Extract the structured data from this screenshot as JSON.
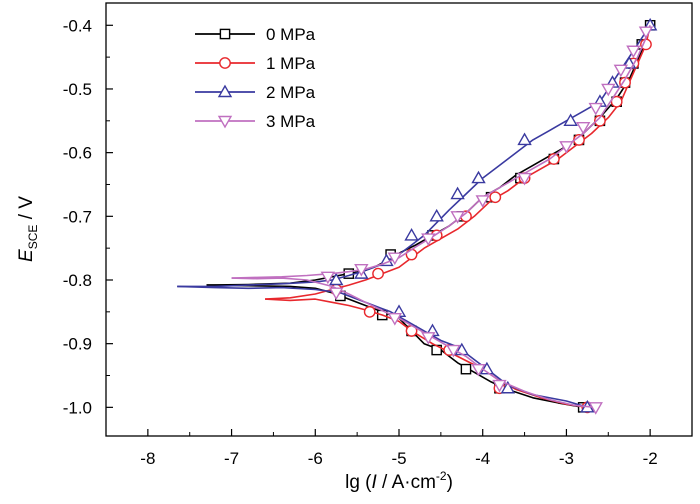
{
  "chart_data": {
    "type": "line",
    "title": "",
    "xlabel": "lg (I / A·cm⁻²)",
    "xlabel_parts": {
      "pre": "lg (",
      "var": "I",
      "mid": " / A·cm",
      "sup": "-2",
      "post": ")"
    },
    "ylabel": "E_SCE / V",
    "ylabel_parts": {
      "var": "E",
      "sub": "SCE",
      "post": " / V"
    },
    "xlim": [
      -8.5,
      -1.5
    ],
    "ylim": [
      -1.045,
      -0.365
    ],
    "x_ticks": [
      -8,
      -7,
      -6,
      -5,
      -4,
      -3,
      -2
    ],
    "x_tick_labels": [
      "-8",
      "-7",
      "-6",
      "-5",
      "-4",
      "-3",
      "-2"
    ],
    "y_ticks": [
      -0.4,
      -0.5,
      -0.6,
      -0.7,
      -0.8,
      -0.9,
      -1.0
    ],
    "y_tick_labels": [
      "-0.4",
      "-0.5",
      "-0.6",
      "-0.7",
      "-0.8",
      "-0.9",
      "-1.0"
    ],
    "grid": false,
    "legend_position": "top-left",
    "series": [
      {
        "name": "0 MPa",
        "color": "#000000",
        "marker": "square",
        "cathodic": [
          [
            -7.3,
            -0.808
          ],
          [
            -6.8,
            -0.809
          ],
          [
            -6.3,
            -0.81
          ],
          [
            -6.0,
            -0.813
          ],
          [
            -5.8,
            -0.82
          ],
          [
            -5.6,
            -0.83
          ],
          [
            -5.4,
            -0.84
          ],
          [
            -5.2,
            -0.85
          ],
          [
            -5.0,
            -0.86
          ],
          [
            -4.85,
            -0.88
          ],
          [
            -4.7,
            -0.9
          ],
          [
            -4.5,
            -0.91
          ],
          [
            -4.3,
            -0.93
          ],
          [
            -4.1,
            -0.945
          ],
          [
            -3.9,
            -0.96
          ],
          [
            -3.7,
            -0.972
          ],
          [
            -3.4,
            -0.985
          ],
          [
            -3.1,
            -0.993
          ],
          [
            -2.8,
            -1.0
          ]
        ],
        "anodic": [
          [
            -7.3,
            -0.808
          ],
          [
            -6.8,
            -0.807
          ],
          [
            -6.3,
            -0.805
          ],
          [
            -6.0,
            -0.8
          ],
          [
            -5.8,
            -0.795
          ],
          [
            -5.6,
            -0.79
          ],
          [
            -5.4,
            -0.785
          ],
          [
            -5.3,
            -0.78
          ],
          [
            -5.15,
            -0.77
          ],
          [
            -5.0,
            -0.758
          ],
          [
            -4.8,
            -0.745
          ],
          [
            -4.6,
            -0.73
          ],
          [
            -4.4,
            -0.715
          ],
          [
            -4.2,
            -0.695
          ],
          [
            -4.0,
            -0.67
          ],
          [
            -3.8,
            -0.655
          ],
          [
            -3.6,
            -0.635
          ],
          [
            -3.4,
            -0.62
          ],
          [
            -3.2,
            -0.605
          ],
          [
            -3.0,
            -0.59
          ],
          [
            -2.8,
            -0.57
          ],
          [
            -2.6,
            -0.545
          ],
          [
            -2.4,
            -0.515
          ],
          [
            -2.25,
            -0.485
          ],
          [
            -2.1,
            -0.44
          ],
          [
            -2.0,
            -0.4
          ]
        ],
        "markers": [
          [
            -5.6,
            -0.79
          ],
          [
            -5.1,
            -0.76
          ],
          [
            -4.6,
            -0.73
          ],
          [
            -4.25,
            -0.7
          ],
          [
            -3.9,
            -0.67
          ],
          [
            -3.55,
            -0.64
          ],
          [
            -3.15,
            -0.61
          ],
          [
            -2.85,
            -0.58
          ],
          [
            -2.6,
            -0.55
          ],
          [
            -2.4,
            -0.52
          ],
          [
            -2.3,
            -0.49
          ],
          [
            -2.2,
            -0.46
          ],
          [
            -2.1,
            -0.43
          ],
          [
            -2.0,
            -0.4
          ],
          [
            -5.7,
            -0.825
          ],
          [
            -5.2,
            -0.855
          ],
          [
            -4.85,
            -0.88
          ],
          [
            -4.55,
            -0.91
          ],
          [
            -4.2,
            -0.94
          ],
          [
            -3.8,
            -0.97
          ],
          [
            -2.8,
            -1.0
          ]
        ]
      },
      {
        "name": "1 MPa",
        "color": "#e8282d",
        "marker": "circle",
        "cathodic": [
          [
            -6.6,
            -0.83
          ],
          [
            -6.3,
            -0.832
          ],
          [
            -6.0,
            -0.83
          ],
          [
            -5.8,
            -0.835
          ],
          [
            -5.6,
            -0.84
          ],
          [
            -5.4,
            -0.847
          ],
          [
            -5.2,
            -0.855
          ],
          [
            -5.0,
            -0.865
          ],
          [
            -4.85,
            -0.88
          ],
          [
            -4.6,
            -0.9
          ],
          [
            -4.3,
            -0.92
          ],
          [
            -4.0,
            -0.94
          ],
          [
            -3.8,
            -0.958
          ],
          [
            -3.6,
            -0.972
          ],
          [
            -3.3,
            -0.985
          ],
          [
            -3.0,
            -0.995
          ],
          [
            -2.75,
            -1.0
          ]
        ],
        "anodic": [
          [
            -6.6,
            -0.83
          ],
          [
            -6.3,
            -0.828
          ],
          [
            -6.0,
            -0.822
          ],
          [
            -5.8,
            -0.815
          ],
          [
            -5.6,
            -0.808
          ],
          [
            -5.4,
            -0.8
          ],
          [
            -5.2,
            -0.79
          ],
          [
            -5.0,
            -0.78
          ],
          [
            -4.85,
            -0.765
          ],
          [
            -4.7,
            -0.75
          ],
          [
            -4.5,
            -0.735
          ],
          [
            -4.3,
            -0.72
          ],
          [
            -4.1,
            -0.7
          ],
          [
            -3.9,
            -0.675
          ],
          [
            -3.7,
            -0.66
          ],
          [
            -3.5,
            -0.64
          ],
          [
            -3.3,
            -0.625
          ],
          [
            -3.1,
            -0.61
          ],
          [
            -2.9,
            -0.59
          ],
          [
            -2.7,
            -0.57
          ],
          [
            -2.5,
            -0.545
          ],
          [
            -2.35,
            -0.52
          ],
          [
            -2.25,
            -0.49
          ],
          [
            -2.15,
            -0.46
          ],
          [
            -2.05,
            -0.43
          ],
          [
            -2.0,
            -0.4
          ]
        ],
        "markers": [
          [
            -5.75,
            -0.815
          ],
          [
            -5.25,
            -0.79
          ],
          [
            -4.85,
            -0.76
          ],
          [
            -4.55,
            -0.73
          ],
          [
            -4.2,
            -0.7
          ],
          [
            -3.85,
            -0.67
          ],
          [
            -3.5,
            -0.64
          ],
          [
            -3.15,
            -0.61
          ],
          [
            -2.85,
            -0.58
          ],
          [
            -2.6,
            -0.55
          ],
          [
            -2.4,
            -0.52
          ],
          [
            -2.3,
            -0.49
          ],
          [
            -2.2,
            -0.46
          ],
          [
            -2.05,
            -0.43
          ],
          [
            -5.35,
            -0.85
          ],
          [
            -4.85,
            -0.88
          ],
          [
            -4.4,
            -0.91
          ],
          [
            -3.8,
            -0.97
          ],
          [
            -2.75,
            -1.0
          ]
        ]
      },
      {
        "name": "2 MPa",
        "color": "#3a3aa0",
        "marker": "triangle-up",
        "cathodic": [
          [
            -7.65,
            -0.81
          ],
          [
            -7.2,
            -0.812
          ],
          [
            -6.8,
            -0.813
          ],
          [
            -6.4,
            -0.812
          ],
          [
            -6.0,
            -0.815
          ],
          [
            -5.7,
            -0.82
          ],
          [
            -5.5,
            -0.83
          ],
          [
            -5.3,
            -0.84
          ],
          [
            -5.1,
            -0.85
          ],
          [
            -4.9,
            -0.865
          ],
          [
            -4.7,
            -0.88
          ],
          [
            -4.5,
            -0.895
          ],
          [
            -4.3,
            -0.905
          ],
          [
            -4.1,
            -0.925
          ],
          [
            -3.9,
            -0.945
          ],
          [
            -3.7,
            -0.965
          ],
          [
            -3.4,
            -0.98
          ],
          [
            -3.0,
            -0.99
          ],
          [
            -2.75,
            -1.0
          ]
        ],
        "anodic": [
          [
            -7.65,
            -0.81
          ],
          [
            -7.2,
            -0.81
          ],
          [
            -6.8,
            -0.808
          ],
          [
            -6.4,
            -0.806
          ],
          [
            -6.0,
            -0.803
          ],
          [
            -5.8,
            -0.8
          ],
          [
            -5.6,
            -0.793
          ],
          [
            -5.4,
            -0.785
          ],
          [
            -5.2,
            -0.775
          ],
          [
            -5.0,
            -0.76
          ],
          [
            -4.85,
            -0.745
          ],
          [
            -4.7,
            -0.73
          ],
          [
            -4.55,
            -0.71
          ],
          [
            -4.4,
            -0.69
          ],
          [
            -4.2,
            -0.665
          ],
          [
            -4.0,
            -0.64
          ],
          [
            -3.8,
            -0.62
          ],
          [
            -3.6,
            -0.6
          ],
          [
            -3.4,
            -0.58
          ],
          [
            -3.2,
            -0.565
          ],
          [
            -3.0,
            -0.55
          ],
          [
            -2.8,
            -0.535
          ],
          [
            -2.6,
            -0.52
          ],
          [
            -2.45,
            -0.49
          ],
          [
            -2.3,
            -0.46
          ],
          [
            -2.15,
            -0.43
          ],
          [
            -2.0,
            -0.4
          ]
        ],
        "markers": [
          [
            -5.75,
            -0.8
          ],
          [
            -5.45,
            -0.79
          ],
          [
            -5.15,
            -0.77
          ],
          [
            -4.85,
            -0.73
          ],
          [
            -4.55,
            -0.7
          ],
          [
            -4.3,
            -0.665
          ],
          [
            -4.05,
            -0.64
          ],
          [
            -3.5,
            -0.58
          ],
          [
            -2.95,
            -0.55
          ],
          [
            -2.6,
            -0.52
          ],
          [
            -2.45,
            -0.49
          ],
          [
            -2.25,
            -0.46
          ],
          [
            -2.0,
            -0.4
          ],
          [
            -5.0,
            -0.85
          ],
          [
            -4.6,
            -0.88
          ],
          [
            -4.25,
            -0.91
          ],
          [
            -3.95,
            -0.94
          ],
          [
            -3.7,
            -0.97
          ],
          [
            -2.75,
            -1.0
          ]
        ]
      },
      {
        "name": "3 MPa",
        "color": "#c070c0",
        "marker": "triangle-down",
        "cathodic": [
          [
            -7.0,
            -0.797
          ],
          [
            -6.7,
            -0.798
          ],
          [
            -6.4,
            -0.797
          ],
          [
            -6.1,
            -0.8
          ],
          [
            -5.8,
            -0.81
          ],
          [
            -5.6,
            -0.822
          ],
          [
            -5.4,
            -0.835
          ],
          [
            -5.2,
            -0.848
          ],
          [
            -5.0,
            -0.86
          ],
          [
            -4.8,
            -0.875
          ],
          [
            -4.6,
            -0.89
          ],
          [
            -4.4,
            -0.905
          ],
          [
            -4.2,
            -0.92
          ],
          [
            -4.0,
            -0.94
          ],
          [
            -3.8,
            -0.958
          ],
          [
            -3.5,
            -0.975
          ],
          [
            -3.2,
            -0.988
          ],
          [
            -2.9,
            -0.997
          ],
          [
            -2.65,
            -1.0
          ]
        ],
        "anodic": [
          [
            -7.0,
            -0.797
          ],
          [
            -6.7,
            -0.796
          ],
          [
            -6.4,
            -0.795
          ],
          [
            -6.1,
            -0.793
          ],
          [
            -5.8,
            -0.79
          ],
          [
            -5.6,
            -0.787
          ],
          [
            -5.4,
            -0.783
          ],
          [
            -5.2,
            -0.775
          ],
          [
            -5.0,
            -0.765
          ],
          [
            -4.8,
            -0.748
          ],
          [
            -4.6,
            -0.732
          ],
          [
            -4.4,
            -0.715
          ],
          [
            -4.2,
            -0.695
          ],
          [
            -4.0,
            -0.67
          ],
          [
            -3.8,
            -0.655
          ],
          [
            -3.6,
            -0.64
          ],
          [
            -3.4,
            -0.625
          ],
          [
            -3.2,
            -0.61
          ],
          [
            -3.0,
            -0.59
          ],
          [
            -2.8,
            -0.57
          ],
          [
            -2.6,
            -0.545
          ],
          [
            -2.45,
            -0.515
          ],
          [
            -2.3,
            -0.485
          ],
          [
            -2.15,
            -0.45
          ],
          [
            -2.05,
            -0.42
          ],
          [
            -2.0,
            -0.4
          ]
        ],
        "markers": [
          [
            -5.85,
            -0.795
          ],
          [
            -5.45,
            -0.783
          ],
          [
            -5.05,
            -0.765
          ],
          [
            -4.65,
            -0.735
          ],
          [
            -4.3,
            -0.7
          ],
          [
            -4.0,
            -0.675
          ],
          [
            -3.5,
            -0.64
          ],
          [
            -3.0,
            -0.59
          ],
          [
            -2.8,
            -0.56
          ],
          [
            -2.65,
            -0.53
          ],
          [
            -2.5,
            -0.5
          ],
          [
            -2.35,
            -0.47
          ],
          [
            -2.2,
            -0.44
          ],
          [
            -2.05,
            -0.41
          ],
          [
            -5.75,
            -0.82
          ],
          [
            -5.05,
            -0.86
          ],
          [
            -4.65,
            -0.89
          ],
          [
            -4.35,
            -0.91
          ],
          [
            -4.05,
            -0.94
          ],
          [
            -3.8,
            -0.965
          ],
          [
            -2.65,
            -1.0
          ]
        ]
      }
    ]
  }
}
